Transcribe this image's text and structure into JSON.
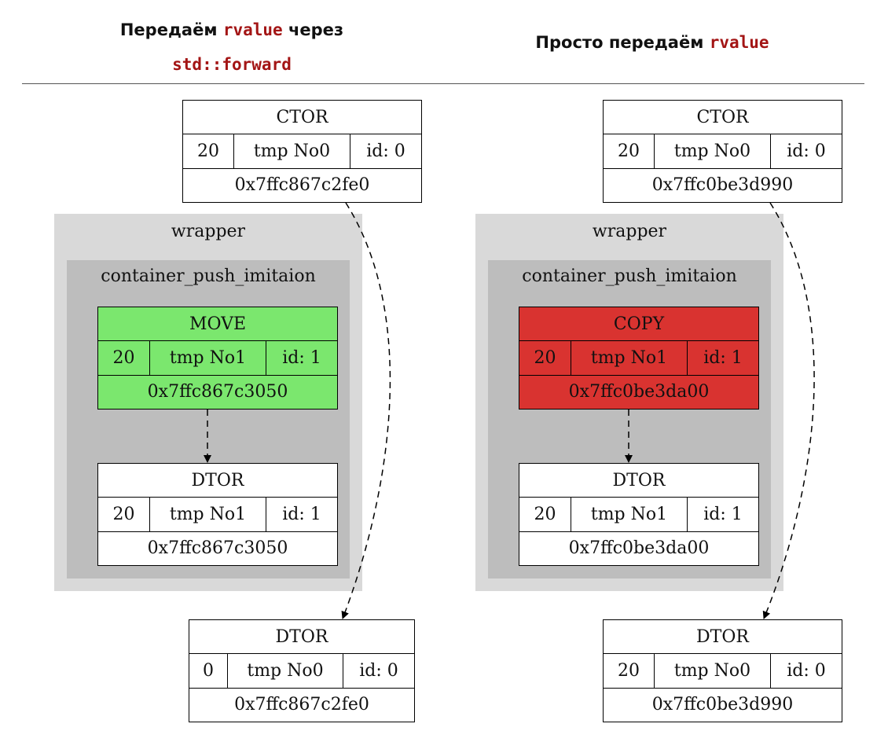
{
  "headers": {
    "left": {
      "text_before": "Передаём ",
      "code": "rvalue",
      "text_after": " через",
      "code2": "std::forward"
    },
    "right": {
      "text_before": "Просто передаём ",
      "code": "rvalue"
    }
  },
  "panels": {
    "left": {
      "wrapper_label": "wrapper",
      "inner_label": "container_push_imitaion",
      "ctor": {
        "title": "CTOR",
        "value": "20",
        "name": "tmp No0",
        "id": "id: 0",
        "addr": "0x7ffc867c2fe0"
      },
      "op": {
        "title": "MOVE",
        "value": "20",
        "name": "tmp No1",
        "id": "id: 1",
        "addr": "0x7ffc867c3050",
        "color": "#7be76e"
      },
      "inner_dtor": {
        "title": "DTOR",
        "value": "20",
        "name": "tmp No1",
        "id": "id: 1",
        "addr": "0x7ffc867c3050"
      },
      "outer_dtor": {
        "title": "DTOR",
        "value": "0",
        "name": "tmp No0",
        "id": "id: 0",
        "addr": "0x7ffc867c2fe0"
      }
    },
    "right": {
      "wrapper_label": "wrapper",
      "inner_label": "container_push_imitaion",
      "ctor": {
        "title": "CTOR",
        "value": "20",
        "name": "tmp No0",
        "id": "id: 0",
        "addr": "0x7ffc0be3d990"
      },
      "op": {
        "title": "COPY",
        "value": "20",
        "name": "tmp No1",
        "id": "id: 1",
        "addr": "0x7ffc0be3da00",
        "color": "#d93330"
      },
      "inner_dtor": {
        "title": "DTOR",
        "value": "20",
        "name": "tmp No1",
        "id": "id: 1",
        "addr": "0x7ffc0be3da00"
      },
      "outer_dtor": {
        "title": "DTOR",
        "value": "20",
        "name": "tmp No0",
        "id": "id: 0",
        "addr": "0x7ffc0be3d990"
      }
    }
  }
}
